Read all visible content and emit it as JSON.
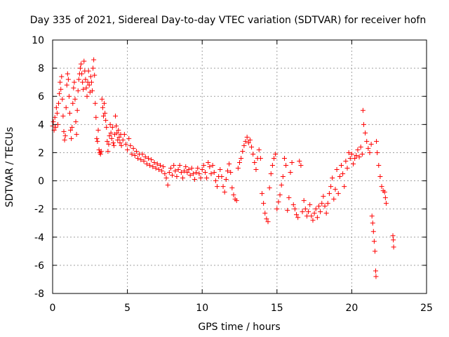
{
  "chart_data": {
    "type": "scatter",
    "title": "Day 335 of 2021, Sidereal Day-to-day VTEC variation (SDTVAR) for receiver hofn",
    "xlabel": "GPS time / hours",
    "ylabel": "SDTVAR / TECUs",
    "xlim": [
      0,
      25
    ],
    "ylim": [
      -8,
      10
    ],
    "xticks": [
      "0",
      "5",
      "10",
      "15",
      "20",
      "25"
    ],
    "yticks": [
      "-8",
      "-6",
      "-4",
      "-2",
      "0",
      "2",
      "4",
      "6",
      "8",
      "10"
    ],
    "grid": true,
    "marker": "plus",
    "color": "#ff0000",
    "series": [
      {
        "name": "SDTVAR",
        "points": [
          [
            0.0,
            3.9
          ],
          [
            0.05,
            4.2
          ],
          [
            0.1,
            3.6
          ],
          [
            0.15,
            4.5
          ],
          [
            0.2,
            3.8
          ],
          [
            0.25,
            5.2
          ],
          [
            0.3,
            4.8
          ],
          [
            0.35,
            4.0
          ],
          [
            0.4,
            5.5
          ],
          [
            0.45,
            6.2
          ],
          [
            0.5,
            7.0
          ],
          [
            0.55,
            6.5
          ],
          [
            0.6,
            7.4
          ],
          [
            0.65,
            5.8
          ],
          [
            0.7,
            4.6
          ],
          [
            0.75,
            3.5
          ],
          [
            0.8,
            2.9
          ],
          [
            0.85,
            3.2
          ],
          [
            0.9,
            5.2
          ],
          [
            0.95,
            6.8
          ],
          [
            1.0,
            7.6
          ],
          [
            1.05,
            7.2
          ],
          [
            1.1,
            6.0
          ],
          [
            1.15,
            4.8
          ],
          [
            1.2,
            3.6
          ],
          [
            1.25,
            3.0
          ],
          [
            1.3,
            3.8
          ],
          [
            1.35,
            5.5
          ],
          [
            1.4,
            6.6
          ],
          [
            1.45,
            7.0
          ],
          [
            1.5,
            5.8
          ],
          [
            1.55,
            4.2
          ],
          [
            1.6,
            3.3
          ],
          [
            1.65,
            5.0
          ],
          [
            1.7,
            6.4
          ],
          [
            1.75,
            7.2
          ],
          [
            1.8,
            7.6
          ],
          [
            1.85,
            8.0
          ],
          [
            1.9,
            8.3
          ],
          [
            1.95,
            7.6
          ],
          [
            2.0,
            7.0
          ],
          [
            2.05,
            6.5
          ],
          [
            2.1,
            8.5
          ],
          [
            2.15,
            7.8
          ],
          [
            2.2,
            7.2
          ],
          [
            2.25,
            6.6
          ],
          [
            2.3,
            6.0
          ],
          [
            2.35,
            7.0
          ],
          [
            2.4,
            7.8
          ],
          [
            2.45,
            6.8
          ],
          [
            2.5,
            6.3
          ],
          [
            2.55,
            7.4
          ],
          [
            2.6,
            7.0
          ],
          [
            2.65,
            6.4
          ],
          [
            2.7,
            8.0
          ],
          [
            2.75,
            8.6
          ],
          [
            2.8,
            7.5
          ],
          [
            2.85,
            5.5
          ],
          [
            2.9,
            4.5
          ],
          [
            2.95,
            3.0
          ],
          [
            3.0,
            2.8
          ],
          [
            3.05,
            3.6
          ],
          [
            3.1,
            2.2
          ],
          [
            3.15,
            2.0
          ],
          [
            3.2,
            1.9
          ],
          [
            3.25,
            2.1
          ],
          [
            3.3,
            5.8
          ],
          [
            3.35,
            5.2
          ],
          [
            3.4,
            4.6
          ],
          [
            3.45,
            5.5
          ],
          [
            3.5,
            4.8
          ],
          [
            3.55,
            4.3
          ],
          [
            3.6,
            3.8
          ],
          [
            3.65,
            2.8
          ],
          [
            3.7,
            2.1
          ],
          [
            3.75,
            2.6
          ],
          [
            3.8,
            3.2
          ],
          [
            3.85,
            4.0
          ],
          [
            3.9,
            3.4
          ],
          [
            3.95,
            3.0
          ],
          [
            4.0,
            3.8
          ],
          [
            4.05,
            2.7
          ],
          [
            4.1,
            2.5
          ],
          [
            4.15,
            3.3
          ],
          [
            4.2,
            4.6
          ],
          [
            4.25,
            3.9
          ],
          [
            4.3,
            3.4
          ],
          [
            4.35,
            2.9
          ],
          [
            4.4,
            3.6
          ],
          [
            4.45,
            3.1
          ],
          [
            4.5,
            2.7
          ],
          [
            4.55,
            3.3
          ],
          [
            4.6,
            2.5
          ],
          [
            4.7,
            2.9
          ],
          [
            4.8,
            3.3
          ],
          [
            4.9,
            2.6
          ],
          [
            5.0,
            2.2
          ],
          [
            5.1,
            3.0
          ],
          [
            5.2,
            2.5
          ],
          [
            5.3,
            1.9
          ],
          [
            5.4,
            2.3
          ],
          [
            5.5,
            1.8
          ],
          [
            5.6,
            2.1
          ],
          [
            5.7,
            1.6
          ],
          [
            5.8,
            1.9
          ],
          [
            5.9,
            1.5
          ],
          [
            6.0,
            1.9
          ],
          [
            6.1,
            1.4
          ],
          [
            6.2,
            1.7
          ],
          [
            6.3,
            1.2
          ],
          [
            6.4,
            1.6
          ],
          [
            6.5,
            1.1
          ],
          [
            6.6,
            1.5
          ],
          [
            6.7,
            1.0
          ],
          [
            6.8,
            1.3
          ],
          [
            6.9,
            0.9
          ],
          [
            7.0,
            1.2
          ],
          [
            7.1,
            0.8
          ],
          [
            7.2,
            1.1
          ],
          [
            7.3,
            0.7
          ],
          [
            7.4,
            1.0
          ],
          [
            7.5,
            0.5
          ],
          [
            7.6,
            0.2
          ],
          [
            7.7,
            -0.3
          ],
          [
            7.8,
            0.6
          ],
          [
            7.9,
            0.9
          ],
          [
            8.0,
            0.4
          ],
          [
            8.1,
            1.1
          ],
          [
            8.2,
            0.7
          ],
          [
            8.3,
            0.3
          ],
          [
            8.4,
            0.8
          ],
          [
            8.5,
            1.1
          ],
          [
            8.6,
            0.6
          ],
          [
            8.7,
            0.2
          ],
          [
            8.8,
            0.7
          ],
          [
            8.9,
            1.0
          ],
          [
            9.0,
            0.6
          ],
          [
            9.1,
            0.8
          ],
          [
            9.2,
            0.4
          ],
          [
            9.3,
            0.9
          ],
          [
            9.4,
            0.5
          ],
          [
            9.5,
            0.1
          ],
          [
            9.6,
            0.6
          ],
          [
            9.7,
            0.9
          ],
          [
            9.8,
            0.5
          ],
          [
            9.9,
            0.2
          ],
          [
            10.0,
            0.8
          ],
          [
            10.1,
            1.1
          ],
          [
            10.2,
            0.6
          ],
          [
            10.3,
            0.2
          ],
          [
            10.4,
            1.3
          ],
          [
            10.5,
            1.0
          ],
          [
            10.6,
            0.5
          ],
          [
            10.7,
            1.1
          ],
          [
            10.8,
            0.6
          ],
          [
            10.9,
            0.0
          ],
          [
            11.0,
            -0.4
          ],
          [
            11.1,
            0.3
          ],
          [
            11.2,
            0.8
          ],
          [
            11.3,
            0.3
          ],
          [
            11.4,
            -0.4
          ],
          [
            11.5,
            -0.8
          ],
          [
            11.6,
            0.1
          ],
          [
            11.7,
            0.7
          ],
          [
            11.8,
            1.2
          ],
          [
            11.9,
            0.6
          ],
          [
            12.0,
            -0.5
          ],
          [
            12.1,
            -1.0
          ],
          [
            12.2,
            -1.3
          ],
          [
            12.3,
            -1.4
          ],
          [
            12.4,
            0.9
          ],
          [
            12.5,
            1.3
          ],
          [
            12.6,
            1.6
          ],
          [
            12.7,
            2.1
          ],
          [
            12.8,
            2.5
          ],
          [
            12.9,
            2.8
          ],
          [
            13.0,
            3.1
          ],
          [
            13.1,
            2.7
          ],
          [
            13.2,
            2.9
          ],
          [
            13.3,
            2.4
          ],
          [
            13.4,
            1.9
          ],
          [
            13.5,
            1.3
          ],
          [
            13.6,
            0.8
          ],
          [
            13.7,
            1.6
          ],
          [
            13.8,
            2.2
          ],
          [
            13.9,
            1.6
          ],
          [
            14.0,
            -0.9
          ],
          [
            14.1,
            -1.6
          ],
          [
            14.2,
            -2.3
          ],
          [
            14.3,
            -2.7
          ],
          [
            14.4,
            -2.9
          ],
          [
            14.5,
            -0.5
          ],
          [
            14.6,
            0.5
          ],
          [
            14.7,
            1.1
          ],
          [
            14.8,
            1.6
          ],
          [
            14.9,
            1.9
          ],
          [
            15.0,
            -2.0
          ],
          [
            15.1,
            -1.5
          ],
          [
            15.2,
            -1.0
          ],
          [
            15.3,
            -0.3
          ],
          [
            15.4,
            0.3
          ],
          [
            15.5,
            1.6
          ],
          [
            15.6,
            1.1
          ],
          [
            15.7,
            -2.1
          ],
          [
            15.8,
            -1.2
          ],
          [
            15.9,
            0.6
          ],
          [
            16.0,
            1.3
          ],
          [
            16.1,
            -1.7
          ],
          [
            16.2,
            -2.0
          ],
          [
            16.3,
            -2.4
          ],
          [
            16.4,
            -2.6
          ],
          [
            16.5,
            1.4
          ],
          [
            16.6,
            1.1
          ],
          [
            16.7,
            -2.2
          ],
          [
            16.8,
            -1.4
          ],
          [
            16.9,
            -2.0
          ],
          [
            17.0,
            -2.5
          ],
          [
            17.1,
            -2.2
          ],
          [
            17.2,
            -1.7
          ],
          [
            17.3,
            -2.5
          ],
          [
            17.4,
            -2.8
          ],
          [
            17.5,
            -2.3
          ],
          [
            17.6,
            -2.0
          ],
          [
            17.7,
            -2.6
          ],
          [
            17.8,
            -1.8
          ],
          [
            17.9,
            -2.2
          ],
          [
            18.0,
            -1.6
          ],
          [
            18.1,
            -1.1
          ],
          [
            18.2,
            -1.8
          ],
          [
            18.3,
            -2.3
          ],
          [
            18.4,
            -1.6
          ],
          [
            18.5,
            -0.9
          ],
          [
            18.6,
            -0.4
          ],
          [
            18.7,
            0.2
          ],
          [
            18.8,
            -1.3
          ],
          [
            18.9,
            -0.6
          ],
          [
            19.0,
            0.8
          ],
          [
            19.1,
            -0.9
          ],
          [
            19.2,
            0.3
          ],
          [
            19.3,
            1.1
          ],
          [
            19.4,
            0.5
          ],
          [
            19.5,
            -0.4
          ],
          [
            19.6,
            1.4
          ],
          [
            19.7,
            0.9
          ],
          [
            19.8,
            2.0
          ],
          [
            19.9,
            1.6
          ],
          [
            20.0,
            1.9
          ],
          [
            20.1,
            1.2
          ],
          [
            20.2,
            1.6
          ],
          [
            20.3,
            1.8
          ],
          [
            20.4,
            2.2
          ],
          [
            20.5,
            1.7
          ],
          [
            20.6,
            2.4
          ],
          [
            20.7,
            1.9
          ],
          [
            20.75,
            5.0
          ],
          [
            20.8,
            4.0
          ],
          [
            20.9,
            3.4
          ],
          [
            21.0,
            2.8
          ],
          [
            21.1,
            2.3
          ],
          [
            21.2,
            2.0
          ],
          [
            21.3,
            2.6
          ],
          [
            21.35,
            -2.5
          ],
          [
            21.4,
            -3.0
          ],
          [
            21.45,
            -3.6
          ],
          [
            21.5,
            -4.3
          ],
          [
            21.55,
            -5.0
          ],
          [
            21.6,
            -6.4
          ],
          [
            21.62,
            -6.8
          ],
          [
            21.65,
            2.8
          ],
          [
            21.7,
            2.0
          ],
          [
            21.8,
            1.1
          ],
          [
            21.9,
            0.3
          ],
          [
            22.0,
            -0.4
          ],
          [
            22.1,
            -0.7
          ],
          [
            22.2,
            -0.8
          ],
          [
            22.25,
            -1.2
          ],
          [
            22.3,
            -1.6
          ],
          [
            22.75,
            -3.9
          ],
          [
            22.78,
            -4.2
          ],
          [
            22.8,
            -4.7
          ]
        ]
      }
    ]
  }
}
